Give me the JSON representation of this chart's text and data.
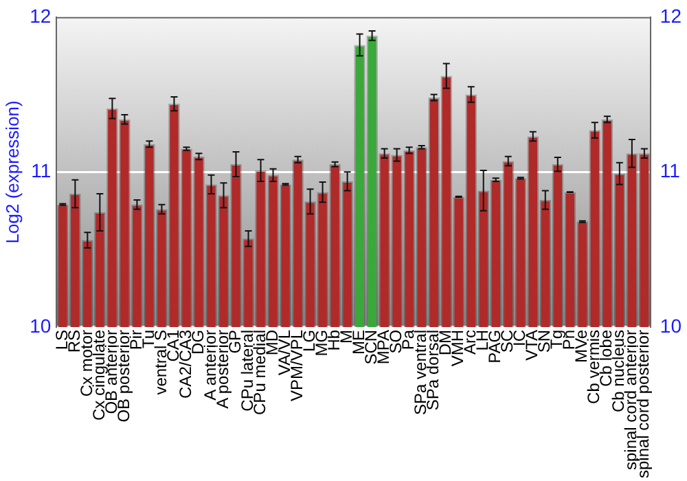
{
  "chart_data": {
    "type": "bar",
    "ylabel": "Log2 (expression)",
    "categories": [
      "LS",
      "RS",
      "Cx motor",
      "Cx cingulate",
      "OB anterior",
      "OB posterior",
      "Pir",
      "Tu",
      "ventral S",
      "CA1",
      "CA2/CA3",
      "DG",
      "A anterior",
      "A posterior",
      "GP",
      "CPu lateral",
      "CPu medial",
      "MD",
      "VA/VL",
      "VPM/VPL",
      "LG",
      "MG",
      "Hb",
      "M",
      "ME",
      "SCN",
      "MPA",
      "SO",
      "Pa",
      "SPa ventral",
      "SPa dorsal",
      "DM",
      "VMH",
      "Arc",
      "LH",
      "PAG",
      "SC",
      "IC",
      "VTA",
      "SN",
      "Tg",
      "Pn",
      "MVe",
      "Cb vermis",
      "Cb lobe",
      "Cb nucleus",
      "spinal cord anterior",
      "spinal cord posterior"
    ],
    "values": [
      10.79,
      10.86,
      10.56,
      10.74,
      11.41,
      11.34,
      10.79,
      11.18,
      10.76,
      11.44,
      11.15,
      11.1,
      10.92,
      10.85,
      11.05,
      10.57,
      11.01,
      10.98,
      10.92,
      11.08,
      10.81,
      10.87,
      11.05,
      10.94,
      11.82,
      11.88,
      11.12,
      11.11,
      11.14,
      11.16,
      11.48,
      11.62,
      10.84,
      11.5,
      10.88,
      10.95,
      11.07,
      10.96,
      11.23,
      10.82,
      11.05,
      10.87,
      10.68,
      11.27,
      11.34,
      10.99,
      11.12,
      11.12
    ],
    "colors": [
      "#b02a2a",
      "#b02a2a",
      "#b02a2a",
      "#b02a2a",
      "#b02a2a",
      "#b02a2a",
      "#b02a2a",
      "#b02a2a",
      "#b02a2a",
      "#b02a2a",
      "#b02a2a",
      "#b02a2a",
      "#b02a2a",
      "#b02a2a",
      "#b02a2a",
      "#b02a2a",
      "#b02a2a",
      "#b02a2a",
      "#b02a2a",
      "#b02a2a",
      "#b02a2a",
      "#b02a2a",
      "#b02a2a",
      "#b02a2a",
      "#3aa83a",
      "#3aa83a",
      "#b02a2a",
      "#b02a2a",
      "#b02a2a",
      "#b02a2a",
      "#b02a2a",
      "#b02a2a",
      "#b02a2a",
      "#b02a2a",
      "#b02a2a",
      "#b02a2a",
      "#b02a2a",
      "#b02a2a",
      "#b02a2a",
      "#b02a2a",
      "#b02a2a",
      "#b02a2a",
      "#b02a2a",
      "#b02a2a",
      "#b02a2a",
      "#b02a2a",
      "#b02a2a",
      "#b02a2a"
    ],
    "errors": [
      0.005,
      0.09,
      0.05,
      0.12,
      0.065,
      0.03,
      0.03,
      0.02,
      0.03,
      0.045,
      0.01,
      0.02,
      0.06,
      0.08,
      0.08,
      0.05,
      0.07,
      0.04,
      0.005,
      0.02,
      0.08,
      0.065,
      0.015,
      0.06,
      0.07,
      0.03,
      0.03,
      0.04,
      0.02,
      0.01,
      0.02,
      0.08,
      0.003,
      0.05,
      0.13,
      0.01,
      0.03,
      0.005,
      0.03,
      0.06,
      0.045,
      0.002,
      0.005,
      0.05,
      0.02,
      0.07,
      0.09,
      0.03
    ],
    "ylim": [
      10,
      12
    ],
    "yticks": [
      10,
      11,
      12
    ],
    "y2lim": [
      10,
      12
    ],
    "y2ticks": [
      10,
      11,
      12
    ],
    "grid": "y",
    "legend": false
  }
}
